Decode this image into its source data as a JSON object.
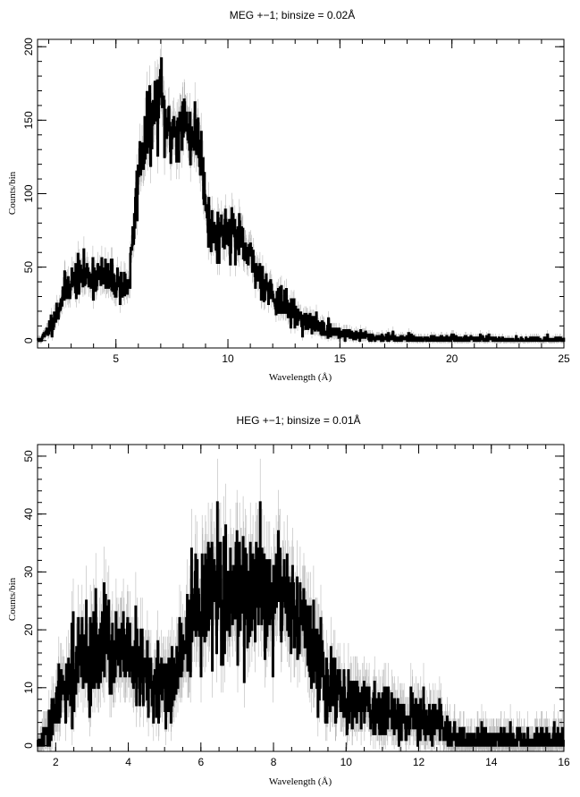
{
  "chart_data": [
    {
      "type": "line",
      "title": "MEG +−1; binsize = 0.02Å",
      "xlabel": "Wavelength (Å)",
      "ylabel": "Counts/bin",
      "xlim": [
        1.5,
        25
      ],
      "ylim": [
        -5,
        205
      ],
      "xticks": [
        5,
        10,
        15,
        20,
        25
      ],
      "yticks": [
        0,
        50,
        100,
        150,
        200
      ],
      "grid": false,
      "series": [
        {
          "x": [
            1.5,
            1.8,
            2.0,
            2.2,
            2.4,
            2.6,
            2.8,
            3.0,
            3.2,
            3.4,
            3.6,
            3.8,
            4.0,
            4.2,
            4.4,
            4.6,
            4.8,
            5.0,
            5.2,
            5.4,
            5.6,
            5.8,
            6.0,
            6.2,
            6.4,
            6.6,
            6.8,
            7.0,
            7.2,
            7.4,
            7.6,
            7.8,
            8.0,
            8.2,
            8.4,
            8.6,
            8.8,
            9.0,
            9.2,
            9.4,
            9.6,
            9.8,
            10.0,
            10.2,
            10.4,
            10.6,
            10.8,
            11.0,
            11.5,
            12.0,
            12.5,
            13.0,
            13.5,
            14.0,
            14.5,
            15.0,
            15.5,
            16.0,
            16.5,
            17.0,
            18.0,
            19.0,
            20.0,
            21.0,
            22.0,
            23.0,
            24.0,
            25.0
          ],
          "y": [
            0,
            3,
            8,
            14,
            20,
            30,
            36,
            40,
            42,
            44,
            44,
            45,
            45,
            44,
            43,
            42,
            41,
            40,
            39,
            37,
            40,
            75,
            115,
            130,
            140,
            150,
            158,
            168,
            148,
            140,
            145,
            142,
            150,
            145,
            140,
            140,
            130,
            100,
            75,
            72,
            74,
            75,
            78,
            74,
            70,
            65,
            60,
            55,
            42,
            32,
            24,
            18,
            13,
            10,
            7,
            5,
            4,
            3,
            2,
            2,
            1.5,
            1,
            1,
            1,
            0.5,
            0.5,
            0.5,
            0.5
          ]
        }
      ]
    },
    {
      "type": "line",
      "title": "HEG +−1; binsize = 0.01Å",
      "xlabel": "Wavelength (Å)",
      "ylabel": "Counts/bin",
      "xlim": [
        1.5,
        16
      ],
      "ylim": [
        -1,
        52
      ],
      "xticks": [
        2,
        4,
        6,
        8,
        10,
        12,
        14,
        16
      ],
      "yticks": [
        0,
        10,
        20,
        30,
        40,
        50
      ],
      "grid": false,
      "series": [
        {
          "x": [
            1.5,
            1.8,
            2.0,
            2.2,
            2.4,
            2.6,
            2.8,
            3.0,
            3.2,
            3.4,
            3.6,
            3.8,
            4.0,
            4.2,
            4.4,
            4.6,
            4.8,
            5.0,
            5.2,
            5.4,
            5.6,
            5.8,
            6.0,
            6.2,
            6.4,
            6.6,
            6.8,
            7.0,
            7.2,
            7.4,
            7.6,
            7.8,
            8.0,
            8.2,
            8.4,
            8.6,
            8.8,
            9.0,
            9.2,
            9.4,
            9.6,
            9.8,
            10.0,
            10.2,
            10.4,
            10.6,
            10.8,
            11.0,
            11.2,
            11.4,
            11.6,
            11.8,
            12.0,
            12.2,
            12.4,
            12.6,
            12.8,
            13.0,
            13.5,
            14.0,
            14.5,
            15.0,
            15.5,
            16.0
          ],
          "y": [
            0,
            2,
            6,
            10,
            12,
            14,
            15,
            16,
            17,
            17,
            16,
            16,
            15,
            14,
            13,
            11,
            10,
            10,
            11,
            14,
            18,
            22,
            25,
            26,
            25,
            26,
            27,
            28,
            27,
            26,
            25,
            25,
            26,
            26,
            25,
            24,
            22,
            18,
            14,
            12,
            10,
            9,
            8,
            8,
            7,
            7,
            6,
            6,
            6,
            5,
            5,
            5,
            5,
            4,
            4,
            3,
            2,
            1,
            1,
            1,
            1,
            1,
            1,
            1
          ]
        }
      ]
    }
  ]
}
